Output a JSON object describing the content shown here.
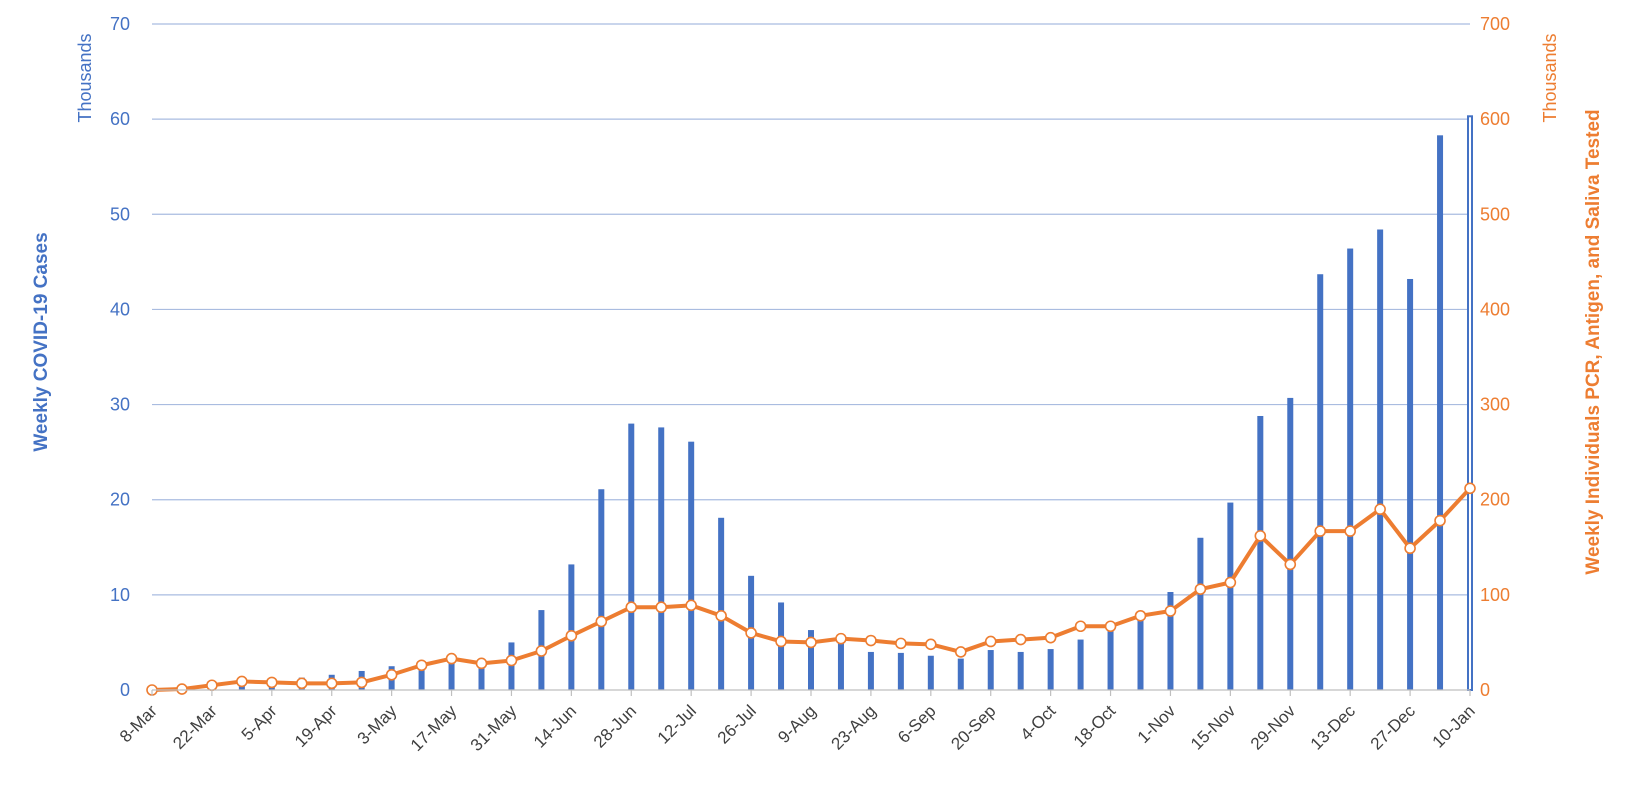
{
  "chart_data": {
    "type": "bar+line",
    "title": "",
    "x": [
      "8-Mar",
      "15-Mar",
      "22-Mar",
      "29-Mar",
      "5-Apr",
      "12-Apr",
      "19-Apr",
      "26-Apr",
      "3-May",
      "10-May",
      "17-May",
      "24-May",
      "31-May",
      "7-Jun",
      "14-Jun",
      "21-Jun",
      "28-Jun",
      "5-Jul",
      "12-Jul",
      "19-Jul",
      "26-Jul",
      "2-Aug",
      "9-Aug",
      "16-Aug",
      "23-Aug",
      "30-Aug",
      "6-Sep",
      "13-Sep",
      "20-Sep",
      "27-Sep",
      "4-Oct",
      "11-Oct",
      "18-Oct",
      "25-Oct",
      "1-Nov",
      "8-Nov",
      "15-Nov",
      "22-Nov",
      "29-Nov",
      "6-Dec",
      "13-Dec",
      "20-Dec",
      "27-Dec",
      "3-Jan",
      "10-Jan"
    ],
    "x_tick_labels": [
      "8-Mar",
      "22-Mar",
      "5-Apr",
      "19-Apr",
      "3-May",
      "17-May",
      "31-May",
      "14-Jun",
      "28-Jun",
      "12-Jul",
      "26-Jul",
      "9-Aug",
      "23-Aug",
      "6-Sep",
      "20-Sep",
      "4-Oct",
      "18-Oct",
      "1-Nov",
      "15-Nov",
      "29-Nov",
      "13-Dec",
      "27-Dec",
      "10-Jan"
    ],
    "series": [
      {
        "name": "Weekly COVID-19 Cases",
        "type": "bar",
        "axis": "left",
        "color": "#4472C4",
        "values": [
          0.0,
          0.1,
          0.6,
          0.9,
          1.1,
          1.3,
          1.6,
          2.0,
          2.5,
          2.9,
          3.4,
          3.0,
          5.0,
          8.4,
          13.2,
          21.1,
          28.0,
          27.6,
          26.1,
          18.1,
          12.0,
          9.2,
          6.3,
          5.0,
          4.0,
          3.9,
          3.6,
          3.3,
          4.2,
          4.0,
          4.3,
          5.3,
          6.4,
          7.9,
          10.3,
          16.0,
          19.7,
          28.8,
          30.7,
          43.7,
          46.4,
          48.4,
          43.2,
          58.3,
          60.3
        ]
      },
      {
        "name": "Weekly Individuals PCR, Antigen, and Saliva Tested",
        "type": "line",
        "axis": "right",
        "color": "#ED7D31",
        "values": [
          0,
          1,
          5,
          9,
          8,
          7,
          7,
          8,
          16,
          26,
          33,
          28,
          31,
          41,
          57,
          72,
          87,
          87,
          89,
          78,
          60,
          51,
          50,
          54,
          52,
          49,
          48,
          40,
          51,
          53,
          55,
          67,
          67,
          78,
          83,
          106,
          113,
          162,
          132,
          167,
          167,
          190,
          149,
          178,
          212
        ]
      }
    ],
    "y_left": {
      "label": "Weekly COVID-19 Cases",
      "units": "Thousands",
      "ylim": [
        0,
        70
      ],
      "ticks": [
        0,
        10,
        20,
        30,
        40,
        50,
        60,
        70
      ]
    },
    "y_right": {
      "label": "Weekly Individuals PCR, Antigen, and Saliva Tested",
      "units": "Thousands",
      "ylim": [
        0,
        700
      ],
      "ticks": [
        0,
        100,
        200,
        300,
        400,
        500,
        600,
        700
      ]
    },
    "grid": true,
    "legend": "none",
    "colors": {
      "cases": "#4472C4",
      "tested": "#ED7D31",
      "grid": "#A9BCE0"
    }
  }
}
